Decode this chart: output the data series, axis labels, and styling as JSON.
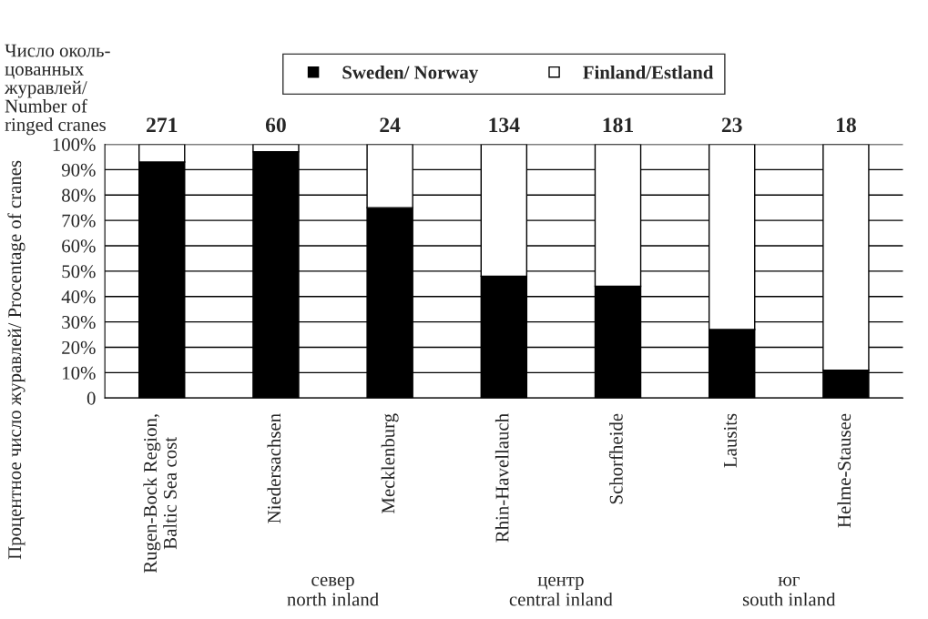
{
  "chart_data": {
    "type": "bar",
    "stacked": true,
    "categories": [
      "Rugen-Bock Region,\nBaltic Sea cost",
      "Niedersachsen",
      "Mecklenburg",
      "Rhin-Havellauch",
      "Schorfheide",
      "Lausits",
      "Helme-Stausee"
    ],
    "series": [
      {
        "name": "Sweden/ Norway",
        "color": "#000000",
        "values": [
          93,
          97,
          75,
          48,
          44,
          27,
          11
        ]
      },
      {
        "name": "Finland/Estland",
        "color": "#ffffff",
        "values": [
          7,
          3,
          25,
          52,
          56,
          73,
          89
        ]
      }
    ],
    "ylabel": "Процентное число журавлей/ Procentage of cranes",
    "ylim": [
      0,
      100
    ],
    "yticks": [
      0,
      {
        "value": 10,
        "label": "10%"
      },
      {
        "value": 20,
        "label": "20%"
      },
      {
        "value": 30,
        "label": "30%"
      },
      {
        "value": 40,
        "label": "40%"
      },
      {
        "value": 50,
        "label": "50%"
      },
      {
        "value": 60,
        "label": "60%"
      },
      {
        "value": 70,
        "label": "70%"
      },
      {
        "value": 80,
        "label": "80%"
      },
      {
        "value": 90,
        "label": "90%"
      },
      {
        "value": 100,
        "label": "100%"
      }
    ],
    "grid": "y",
    "legend": "top",
    "marker": "square",
    "annotations": [
      "Число околь-\nцованных\nжуравлей/\nNumber of\nringed cranes",
      {
        "text": "271",
        "x": "Rugen-Bock Region,\nBaltic Sea cost",
        "y": 100
      },
      {
        "text": "60",
        "x": "Niedersachsen",
        "y": 100
      },
      {
        "text": "24",
        "x": "Mecklenburg",
        "y": 100
      },
      {
        "text": "134",
        "x": "Rhin-Havellauch",
        "y": 100
      },
      {
        "text": "181",
        "x": "Schorfheide",
        "y": 100
      },
      {
        "text": "23",
        "x": "Lausits",
        "y": 100
      },
      {
        "text": "18",
        "x": "Helme-Stausee",
        "y": 100
      },
      "север\nnorth inland",
      "центр\ncentral inland",
      "юг\nsouth inland"
    ]
  }
}
